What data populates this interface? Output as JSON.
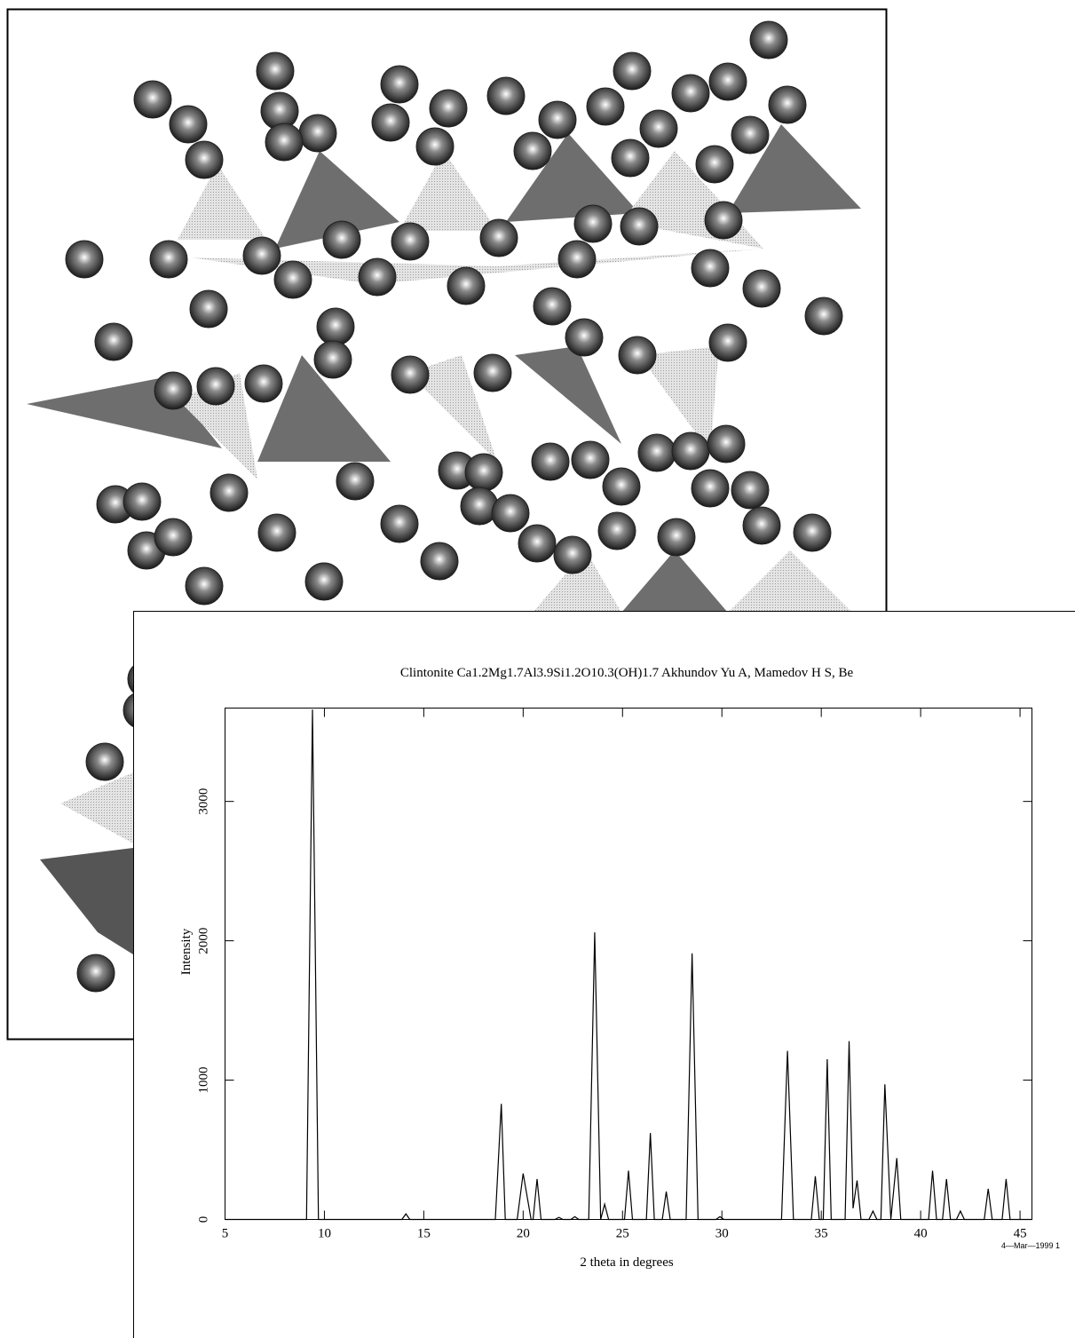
{
  "chart_data": {
    "type": "line",
    "title": "Clintonite Ca1.2Mg1.7Al3.9Si1.2O10.3(OH)1.7 Akhundov Yu A, Mamedov H S, Be",
    "x_label": "2 theta in degrees",
    "y_label": "Intensity",
    "footnote": "4—Mar—1999 1",
    "x": [
      5,
      9.1,
      9.4,
      9.7,
      13.9,
      14.1,
      14.3,
      18.6,
      18.9,
      19.1,
      19.7,
      20.0,
      20.4,
      20.5,
      20.7,
      20.9,
      21.6,
      21.8,
      22.0,
      22.4,
      22.6,
      22.8,
      23.3,
      23.6,
      23.9,
      24.1,
      24.3,
      25.1,
      25.3,
      25.5,
      26.2,
      26.4,
      26.6,
      27.0,
      27.2,
      27.4,
      28.2,
      28.5,
      28.8,
      29.7,
      29.9,
      30.1,
      33.0,
      33.3,
      33.6,
      34.5,
      34.7,
      34.9,
      35.1,
      35.3,
      35.5,
      36.2,
      36.4,
      36.6,
      36.8,
      37.0,
      37.4,
      37.6,
      37.8,
      38.0,
      38.2,
      38.5,
      38.8,
      39.0,
      40.4,
      40.6,
      40.8,
      41.1,
      41.3,
      41.5,
      41.8,
      42.0,
      42.2,
      43.2,
      43.4,
      43.6,
      44.1,
      44.3,
      44.5,
      45.6
    ],
    "series": [
      {
        "color": "#000000",
        "values": [
          0,
          0,
          3660,
          0,
          0,
          40,
          0,
          0,
          830,
          0,
          0,
          330,
          0,
          0,
          290,
          0,
          0,
          15,
          0,
          0,
          20,
          0,
          0,
          2060,
          0,
          110,
          0,
          0,
          350,
          0,
          0,
          620,
          0,
          0,
          200,
          0,
          0,
          1910,
          0,
          0,
          20,
          0,
          0,
          1210,
          0,
          0,
          310,
          0,
          0,
          1150,
          0,
          0,
          1280,
          80,
          280,
          0,
          0,
          60,
          0,
          0,
          970,
          0,
          440,
          0,
          0,
          350,
          0,
          0,
          290,
          0,
          0,
          60,
          0,
          0,
          220,
          0,
          0,
          290,
          0,
          0
        ]
      }
    ],
    "xlim": [
      5,
      45.6
    ],
    "ylim": [
      0,
      3670
    ],
    "xticks": [
      5,
      10,
      15,
      20,
      25,
      30,
      35,
      40,
      45
    ],
    "yticks": [
      0,
      1000,
      2000,
      3000
    ]
  }
}
